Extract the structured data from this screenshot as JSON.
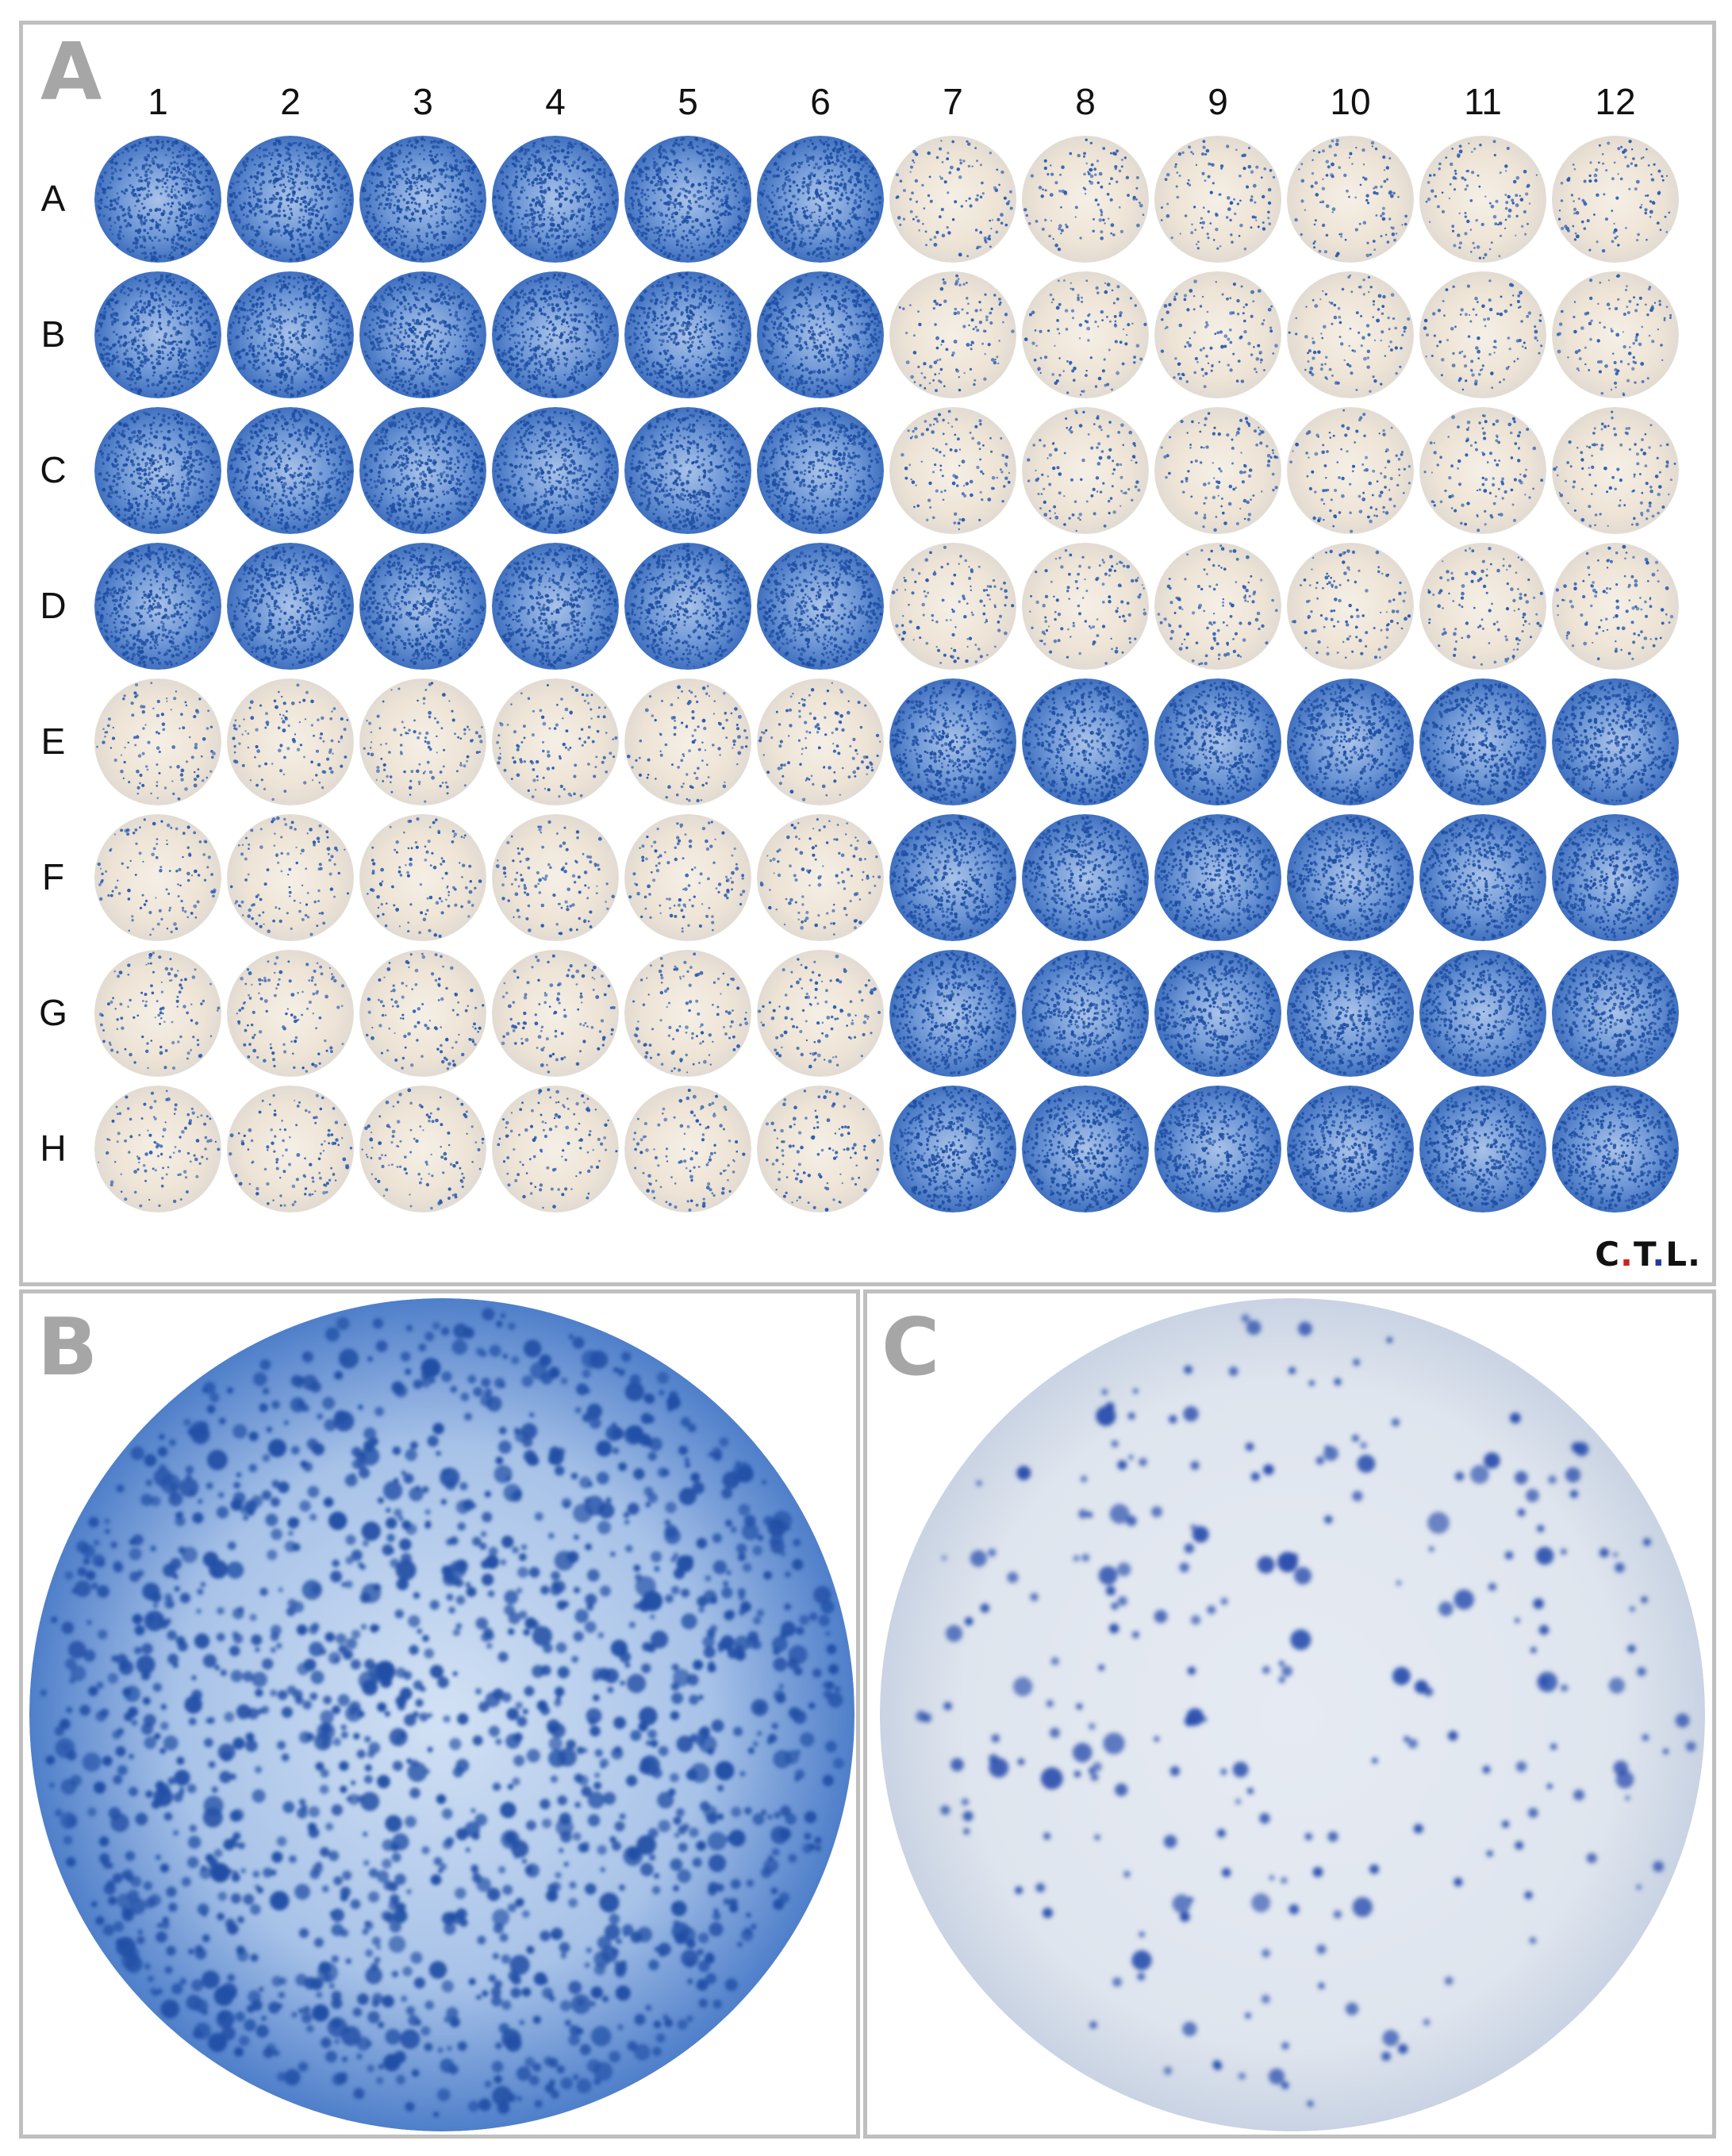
{
  "panels": {
    "a": {
      "letter": "A",
      "columns": [
        "1",
        "2",
        "3",
        "4",
        "5",
        "6",
        "7",
        "8",
        "9",
        "10",
        "11",
        "12"
      ],
      "rows": [
        "A",
        "B",
        "C",
        "D",
        "E",
        "F",
        "G",
        "H"
      ],
      "brand": {
        "c": "C",
        "d1": ".",
        "t": "T",
        "d2": ".",
        "l": "L",
        "d3": "."
      }
    },
    "b": {
      "letter": "B"
    },
    "c": {
      "letter": "C"
    }
  },
  "colors": {
    "dense_well": "#4f7fca",
    "sparse_well": "#efe7dc",
    "spot": "#1d4fa5",
    "panel_border": "#bfbfbf",
    "panel_letter": "#a6a6a6",
    "brand_red": "#d0201c",
    "brand_blue": "#2638a8"
  }
}
